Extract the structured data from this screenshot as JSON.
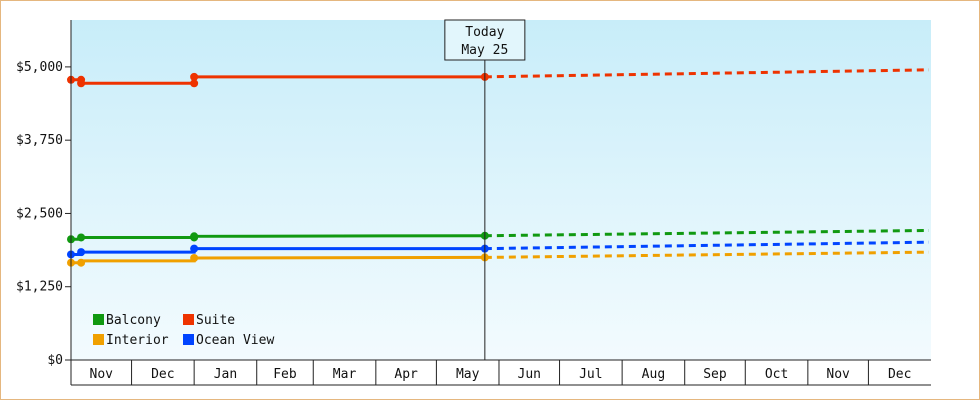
{
  "chart_data": {
    "type": "line",
    "title": "",
    "xlabel": "",
    "ylabel": "",
    "ylim": [
      0,
      5800
    ],
    "y_ticks": [
      {
        "value": 0,
        "label": "$0"
      },
      {
        "value": 1250,
        "label": "$1,250"
      },
      {
        "value": 2500,
        "label": "$2,500"
      },
      {
        "value": 3750,
        "label": "$3,750"
      },
      {
        "value": 5000,
        "label": "$5,000"
      }
    ],
    "x_months": [
      "Nov",
      "Dec",
      "Jan",
      "Feb",
      "Mar",
      "Apr",
      "May",
      "Jun",
      "Jul",
      "Aug",
      "Sep",
      "Oct",
      "Nov",
      "Dec"
    ],
    "x_range": [
      "2022-11-01",
      "2023-12-31"
    ],
    "today": {
      "line1": "Today",
      "line2": "May 25",
      "date": "2023-05-25"
    },
    "grid": false,
    "legend_position": "bottom-left",
    "background_gradient": [
      "#c8edf9",
      "#f3fbfe"
    ],
    "series": [
      {
        "name": "Balcony",
        "color": "#119911",
        "actual": [
          {
            "date": "2022-11-01",
            "value": 2060
          },
          {
            "date": "2022-11-06",
            "value": 2060
          },
          {
            "date": "2022-11-06",
            "value": 2090
          },
          {
            "date": "2023-01-01",
            "value": 2090
          },
          {
            "date": "2023-01-01",
            "value": 2110
          },
          {
            "date": "2023-05-25",
            "value": 2120
          }
        ],
        "forecast": [
          {
            "date": "2023-05-25",
            "value": 2120
          },
          {
            "date": "2023-12-31",
            "value": 2210
          }
        ]
      },
      {
        "name": "Suite",
        "color": "#ee3300",
        "actual": [
          {
            "date": "2022-11-01",
            "value": 4780
          },
          {
            "date": "2022-11-06",
            "value": 4780
          },
          {
            "date": "2022-11-06",
            "value": 4720
          },
          {
            "date": "2023-01-01",
            "value": 4720
          },
          {
            "date": "2023-01-01",
            "value": 4830
          },
          {
            "date": "2023-05-25",
            "value": 4830
          }
        ],
        "forecast": [
          {
            "date": "2023-05-25",
            "value": 4830
          },
          {
            "date": "2023-12-31",
            "value": 4950
          }
        ]
      },
      {
        "name": "Interior",
        "color": "#f0a000",
        "actual": [
          {
            "date": "2022-11-01",
            "value": 1660
          },
          {
            "date": "2022-11-06",
            "value": 1660
          },
          {
            "date": "2022-11-06",
            "value": 1690
          },
          {
            "date": "2023-01-01",
            "value": 1690
          },
          {
            "date": "2023-01-01",
            "value": 1740
          },
          {
            "date": "2023-05-25",
            "value": 1750
          }
        ],
        "forecast": [
          {
            "date": "2023-05-25",
            "value": 1750
          },
          {
            "date": "2023-12-31",
            "value": 1840
          }
        ]
      },
      {
        "name": "Ocean View",
        "color": "#0044ff",
        "actual": [
          {
            "date": "2022-11-01",
            "value": 1800
          },
          {
            "date": "2022-11-06",
            "value": 1800
          },
          {
            "date": "2022-11-06",
            "value": 1840
          },
          {
            "date": "2023-01-01",
            "value": 1840
          },
          {
            "date": "2023-01-01",
            "value": 1900
          },
          {
            "date": "2023-05-25",
            "value": 1900
          }
        ],
        "forecast": [
          {
            "date": "2023-05-25",
            "value": 1900
          },
          {
            "date": "2023-12-31",
            "value": 2010
          }
        ]
      }
    ],
    "markers": [
      {
        "series": "Balcony",
        "points": [
          {
            "date": "2022-11-01",
            "value": 2060
          },
          {
            "date": "2022-11-06",
            "value": 2090
          },
          {
            "date": "2023-01-01",
            "value": 2090
          },
          {
            "date": "2023-01-01",
            "value": 2110
          },
          {
            "date": "2023-05-25",
            "value": 2120
          }
        ]
      },
      {
        "series": "Suite",
        "points": [
          {
            "date": "2022-11-01",
            "value": 4780
          },
          {
            "date": "2022-11-06",
            "value": 4780
          },
          {
            "date": "2022-11-06",
            "value": 4720
          },
          {
            "date": "2023-01-01",
            "value": 4720
          },
          {
            "date": "2023-01-01",
            "value": 4830
          },
          {
            "date": "2023-05-25",
            "value": 4830
          }
        ]
      },
      {
        "series": "Interior",
        "points": [
          {
            "date": "2022-11-01",
            "value": 1660
          },
          {
            "date": "2022-11-06",
            "value": 1660
          },
          {
            "date": "2023-01-01",
            "value": 1740
          },
          {
            "date": "2023-05-25",
            "value": 1750
          }
        ]
      },
      {
        "series": "Ocean View",
        "points": [
          {
            "date": "2022-11-01",
            "value": 1800
          },
          {
            "date": "2022-11-06",
            "value": 1840
          },
          {
            "date": "2023-01-01",
            "value": 1900
          },
          {
            "date": "2023-05-25",
            "value": 1900
          }
        ]
      }
    ],
    "legend": [
      {
        "name": "Balcony",
        "color": "#119911"
      },
      {
        "name": "Suite",
        "color": "#ee3300"
      },
      {
        "name": "Interior",
        "color": "#f0a000"
      },
      {
        "name": "Ocean View",
        "color": "#0044ff"
      }
    ]
  }
}
